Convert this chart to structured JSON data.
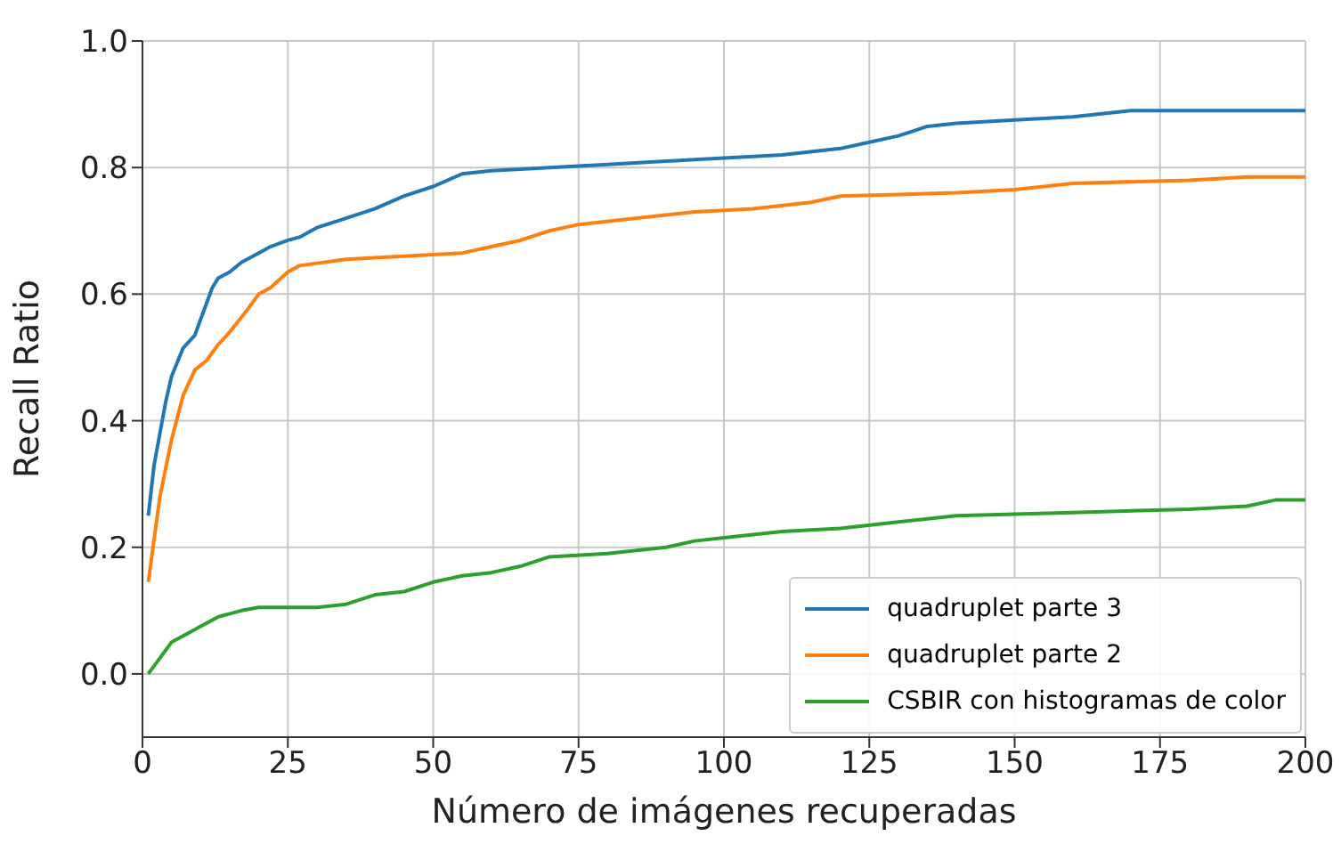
{
  "chart_data": {
    "type": "line",
    "xlabel": "Número de imágenes recuperadas",
    "ylabel": "Recall Ratio",
    "xlim": [
      0,
      200
    ],
    "xticks": [
      0,
      25,
      50,
      75,
      100,
      125,
      150,
      175,
      200
    ],
    "ylim": [
      -0.1,
      1.0
    ],
    "yticks": [
      {
        "value": 0,
        "label": "0.0"
      },
      0.2,
      0.4,
      0.6,
      0.8,
      {
        "value": 1,
        "label": "1.0"
      }
    ],
    "grid": true,
    "legend": "bottom right",
    "marker": "none",
    "line_style": "solid",
    "series": [
      {
        "name": "quadruplet parte 3",
        "color": "#1f77b4",
        "x": [
          1,
          2,
          4,
          5,
          7,
          9,
          10,
          12,
          13,
          15,
          17,
          20,
          22,
          25,
          27,
          30,
          35,
          40,
          45,
          50,
          55,
          60,
          70,
          80,
          90,
          100,
          110,
          120,
          125,
          130,
          135,
          140,
          150,
          160,
          170,
          200
        ],
        "values": [
          0.25,
          0.33,
          0.43,
          0.47,
          0.515,
          0.535,
          0.56,
          0.61,
          0.625,
          0.635,
          0.65,
          0.665,
          0.675,
          0.685,
          0.69,
          0.705,
          0.72,
          0.735,
          0.755,
          0.77,
          0.79,
          0.795,
          0.8,
          0.805,
          0.81,
          0.815,
          0.82,
          0.83,
          0.84,
          0.85,
          0.865,
          0.87,
          0.875,
          0.88,
          0.89,
          0.89
        ]
      },
      {
        "name": "quadruplet parte 2",
        "color": "#ff7f0e",
        "x": [
          1,
          3,
          5,
          7,
          9,
          11,
          13,
          15,
          18,
          20,
          22,
          25,
          27,
          35,
          45,
          55,
          60,
          65,
          70,
          75,
          85,
          95,
          105,
          115,
          120,
          140,
          150,
          160,
          180,
          190,
          200
        ],
        "values": [
          0.145,
          0.28,
          0.37,
          0.44,
          0.48,
          0.495,
          0.52,
          0.54,
          0.575,
          0.6,
          0.61,
          0.635,
          0.645,
          0.655,
          0.66,
          0.665,
          0.675,
          0.685,
          0.7,
          0.71,
          0.72,
          0.73,
          0.735,
          0.745,
          0.755,
          0.76,
          0.765,
          0.775,
          0.78,
          0.785,
          0.785
        ]
      },
      {
        "name": "CSBIR con histogramas de color",
        "color": "#2ca02c",
        "x": [
          1,
          3,
          5,
          8,
          10,
          13,
          17,
          20,
          30,
          35,
          40,
          45,
          50,
          55,
          60,
          65,
          70,
          80,
          90,
          95,
          100,
          110,
          120,
          130,
          140,
          160,
          180,
          190,
          195,
          200
        ],
        "values": [
          0,
          0.025,
          0.05,
          0.065,
          0.075,
          0.09,
          0.1,
          0.105,
          0.105,
          0.11,
          0.125,
          0.13,
          0.145,
          0.155,
          0.16,
          0.17,
          0.185,
          0.19,
          0.2,
          0.21,
          0.215,
          0.225,
          0.23,
          0.24,
          0.25,
          0.255,
          0.26,
          0.265,
          0.275,
          0.275
        ]
      }
    ]
  }
}
